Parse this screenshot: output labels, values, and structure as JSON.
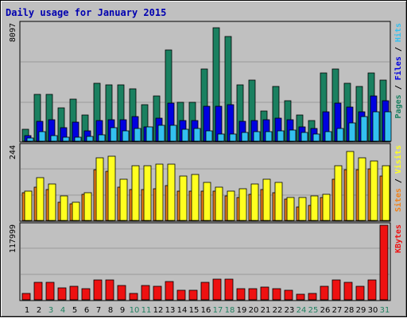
{
  "title": "Daily usage for January 2015",
  "colors": {
    "pages": "#1a8060",
    "files": "#0000e0",
    "hits": "#33c0f0",
    "sites": "#f08018",
    "visits": "#ffff20",
    "kbytes": "#ee1111",
    "weekend": "#208060",
    "weekday": "#000000",
    "title": "#0000b0",
    "panel_bg": "#c0c0c0",
    "grid": "#9a9a9a"
  },
  "chart_data": [
    {
      "type": "bar",
      "panel": "top",
      "ylim": [
        0,
        8097
      ],
      "y_tick_label": "8097",
      "grid": true,
      "legend_labels": [
        "Pages",
        "Files",
        "Hits"
      ],
      "categories": [
        "1",
        "2",
        "3",
        "4",
        "5",
        "6",
        "7",
        "8",
        "9",
        "10",
        "11",
        "12",
        "13",
        "14",
        "15",
        "16",
        "17",
        "18",
        "19",
        "20",
        "21",
        "22",
        "23",
        "24",
        "25",
        "26",
        "27",
        "28",
        "29",
        "30",
        "31"
      ],
      "series": [
        {
          "name": "Pages",
          "values": [
            800,
            3250,
            3250,
            2300,
            2900,
            1800,
            4000,
            3900,
            3900,
            3600,
            2500,
            3100,
            6300,
            2700,
            2700,
            5000,
            7800,
            7200,
            3900,
            4200,
            2100,
            3800,
            2800,
            1800,
            1400,
            4700,
            5000,
            4000,
            3800,
            4700,
            4200
          ]
        },
        {
          "name": "Files",
          "values": [
            400,
            1350,
            1500,
            950,
            1300,
            720,
            1400,
            1500,
            1500,
            1700,
            1000,
            1600,
            2600,
            1400,
            1400,
            2400,
            2400,
            2500,
            1350,
            1400,
            1500,
            1600,
            1500,
            1000,
            900,
            2000,
            2600,
            2350,
            2000,
            3100,
            2800
          ]
        },
        {
          "name": "Hits",
          "values": [
            200,
            650,
            400,
            300,
            250,
            350,
            450,
            950,
            700,
            850,
            1000,
            1100,
            1100,
            800,
            900,
            700,
            500,
            500,
            600,
            650,
            650,
            700,
            750,
            600,
            500,
            650,
            850,
            1250,
            1700,
            2000,
            2000
          ]
        }
      ]
    },
    {
      "type": "bar",
      "panel": "middle",
      "ylim": [
        0,
        244
      ],
      "y_tick_label": "244",
      "grid": true,
      "legend_labels": [
        "Sites",
        "Visits"
      ],
      "categories": [
        "1",
        "2",
        "3",
        "4",
        "5",
        "6",
        "7",
        "8",
        "9",
        "10",
        "11",
        "12",
        "13",
        "14",
        "15",
        "16",
        "17",
        "18",
        "19",
        "20",
        "21",
        "22",
        "23",
        "24",
        "25",
        "26",
        "27",
        "28",
        "29",
        "30",
        "31"
      ],
      "series": [
        {
          "name": "Sites",
          "values": [
            90,
            110,
            100,
            60,
            55,
            85,
            165,
            160,
            110,
            100,
            100,
            105,
            115,
            95,
            95,
            95,
            95,
            80,
            75,
            85,
            100,
            90,
            70,
            45,
            50,
            75,
            135,
            165,
            165,
            170,
            145
          ]
        },
        {
          "name": "Visits",
          "values": [
            95,
            140,
            120,
            80,
            60,
            90,
            205,
            210,
            135,
            180,
            180,
            185,
            185,
            145,
            150,
            125,
            110,
            95,
            105,
            120,
            135,
            125,
            75,
            75,
            80,
            85,
            180,
            225,
            205,
            195,
            180
          ]
        }
      ]
    },
    {
      "type": "bar",
      "panel": "bottom",
      "ylim": [
        0,
        117999
      ],
      "y_tick_label": "117999",
      "grid": true,
      "legend_labels": [
        "KBytes"
      ],
      "categories": [
        "1",
        "2",
        "3",
        "4",
        "5",
        "6",
        "7",
        "8",
        "9",
        "10",
        "11",
        "12",
        "13",
        "14",
        "15",
        "16",
        "17",
        "18",
        "19",
        "20",
        "21",
        "22",
        "23",
        "24",
        "25",
        "26",
        "27",
        "28",
        "29",
        "30",
        "31"
      ],
      "series": [
        {
          "name": "KBytes",
          "values": [
            10000,
            27000,
            27000,
            19000,
            21000,
            17000,
            31000,
            31000,
            23000,
            10000,
            23000,
            21000,
            29000,
            15000,
            15000,
            27000,
            33000,
            33000,
            18000,
            18000,
            20000,
            18000,
            15000,
            9000,
            10000,
            21000,
            31000,
            27000,
            21000,
            31000,
            117999
          ]
        }
      ]
    }
  ],
  "day_labels": [
    {
      "text": "1",
      "weekend": false
    },
    {
      "text": "2",
      "weekend": false
    },
    {
      "text": "3",
      "weekend": true
    },
    {
      "text": "4",
      "weekend": true
    },
    {
      "text": "5",
      "weekend": false
    },
    {
      "text": "6",
      "weekend": false
    },
    {
      "text": "7",
      "weekend": false
    },
    {
      "text": "8",
      "weekend": false
    },
    {
      "text": "9",
      "weekend": false
    },
    {
      "text": "10",
      "weekend": true
    },
    {
      "text": "11",
      "weekend": true
    },
    {
      "text": "12",
      "weekend": false
    },
    {
      "text": "13",
      "weekend": false
    },
    {
      "text": "14",
      "weekend": false
    },
    {
      "text": "15",
      "weekend": false
    },
    {
      "text": "16",
      "weekend": false
    },
    {
      "text": "17",
      "weekend": true
    },
    {
      "text": "18",
      "weekend": true
    },
    {
      "text": "19",
      "weekend": false
    },
    {
      "text": "20",
      "weekend": false
    },
    {
      "text": "21",
      "weekend": false
    },
    {
      "text": "22",
      "weekend": false
    },
    {
      "text": "23",
      "weekend": false
    },
    {
      "text": "24",
      "weekend": true
    },
    {
      "text": "25",
      "weekend": true
    },
    {
      "text": "26",
      "weekend": false
    },
    {
      "text": "27",
      "weekend": false
    },
    {
      "text": "28",
      "weekend": false
    },
    {
      "text": "29",
      "weekend": false
    },
    {
      "text": "30",
      "weekend": false
    },
    {
      "text": "31",
      "weekend": true
    }
  ]
}
